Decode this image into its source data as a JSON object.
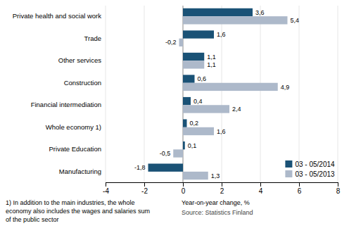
{
  "chart_data": {
    "type": "bar",
    "orientation": "horizontal",
    "categories": [
      "Manufacturing",
      "Private Education",
      "Whole economy 1)",
      "Financial intermediation",
      "Construction",
      "Other services",
      "Trade",
      "Private health and social work"
    ],
    "series": [
      {
        "name": "03 - 05/2014",
        "color": "#1A5276",
        "values": [
          -1.8,
          0.1,
          0.2,
          0.4,
          0.6,
          1.1,
          1.6,
          3.6
        ],
        "value_labels": [
          "-1,8",
          "0,1",
          "0,2",
          "0,4",
          "0,6",
          "1,1",
          "1,6",
          "3,6"
        ]
      },
      {
        "name": "03 - 05/2013",
        "color": "#ADB9CA",
        "values": [
          1.3,
          -0.5,
          1.6,
          2.4,
          4.9,
          1.1,
          -0.2,
          5.4
        ],
        "value_labels": [
          "1,3",
          "-0,5",
          "1,6",
          "2,4",
          "4,9",
          "1,1",
          "-0,2",
          "5,4"
        ]
      }
    ],
    "xlim": [
      -4,
      8
    ],
    "xticks": [
      -4,
      -2,
      0,
      2,
      4,
      6,
      8
    ],
    "xlabel": "Year-on-year change, %",
    "annotations": [
      "1) In addition to the main industries, the whole",
      "economy also includes the wages and salaries sum",
      "of the public sector",
      "Source: Statistics Finland"
    ],
    "grid": true,
    "legend": "lower right",
    "data_labels": true
  }
}
